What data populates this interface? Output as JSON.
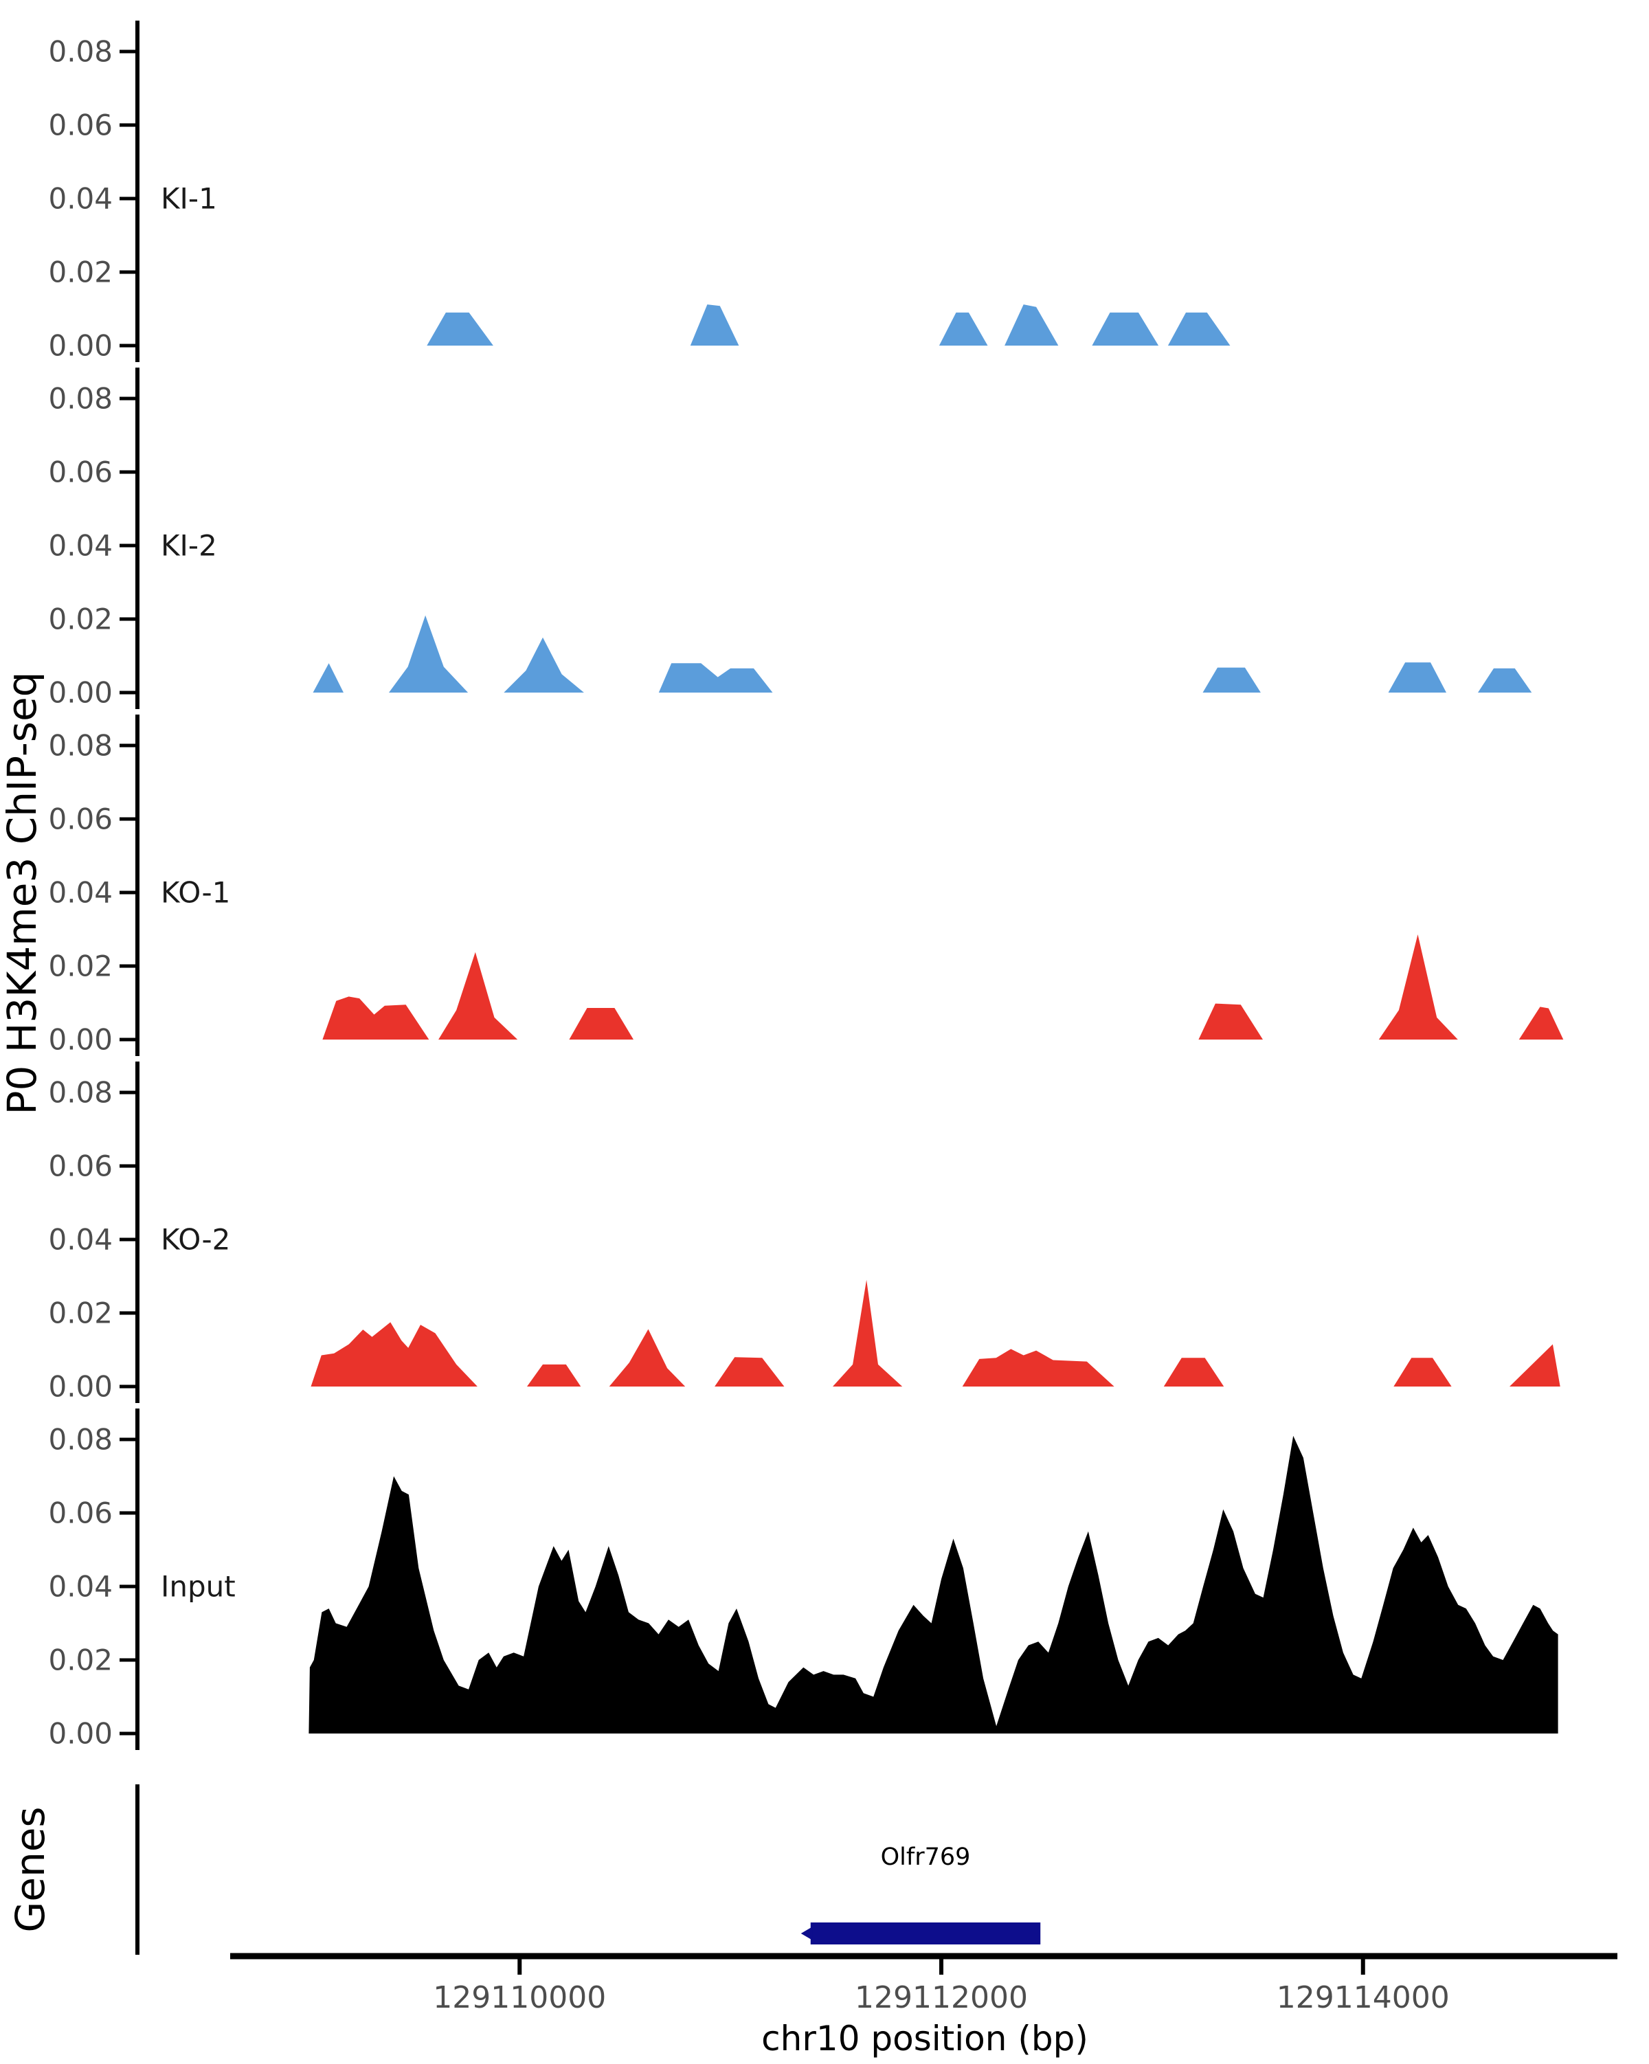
{
  "chart_data": {
    "type": "area",
    "title": "",
    "x_axis": {
      "label": "chr10 position (bp)",
      "ticks": [
        129110000,
        129112000,
        129114000
      ],
      "tick_labels": [
        "129110000",
        "129112000",
        "129114000"
      ],
      "range": [
        129108650,
        129115200
      ],
      "line_color": "#000000",
      "tick_label_color": "#4D4D4D"
    },
    "y_axis": {
      "label": "P0 H3K4me3 ChIP-seq",
      "ticks": [
        0.0,
        0.02,
        0.04,
        0.06,
        0.08
      ],
      "tick_labels": [
        "0.00",
        "0.02",
        "0.04",
        "0.06",
        "0.08"
      ],
      "range": [
        0,
        0.088
      ],
      "line_color": "#000000",
      "tick_label_color": "#4D4D4D"
    },
    "legend_position": "none",
    "grid": false,
    "tracks": [
      {
        "name": "KI-1",
        "color": "#5B9DDB",
        "points": [
          [
            129109560,
            0
          ],
          [
            129109650,
            0.009
          ],
          [
            129109760,
            0.009
          ],
          [
            129109875,
            0
          ],
          [
            129110810,
            0
          ],
          [
            129110890,
            0.0112
          ],
          [
            129110950,
            0.0108
          ],
          [
            129111040,
            0
          ],
          [
            129111990,
            0
          ],
          [
            129112070,
            0.009
          ],
          [
            129112130,
            0.009
          ],
          [
            129112220,
            0
          ],
          [
            129112300,
            0
          ],
          [
            129112390,
            0.0112
          ],
          [
            129112450,
            0.0105
          ],
          [
            129112555,
            0
          ],
          [
            129112715,
            0
          ],
          [
            129112800,
            0.009
          ],
          [
            129112935,
            0.009
          ],
          [
            129113030,
            0
          ],
          [
            129113075,
            0
          ],
          [
            129113160,
            0.009
          ],
          [
            129113260,
            0.009
          ],
          [
            129113370,
            0
          ]
        ]
      },
      {
        "name": "KI-2",
        "color": "#5B9DDB",
        "points": [
          [
            129109020,
            0
          ],
          [
            129109095,
            0.008
          ],
          [
            129109165,
            0
          ],
          [
            129109380,
            0
          ],
          [
            129109470,
            0.007
          ],
          [
            129109553,
            0.021
          ],
          [
            129109640,
            0.007
          ],
          [
            129109755,
            0
          ],
          [
            129109925,
            0
          ],
          [
            129110030,
            0.006
          ],
          [
            129110110,
            0.015
          ],
          [
            129110200,
            0.005
          ],
          [
            129110305,
            0
          ],
          [
            129110660,
            0
          ],
          [
            129110720,
            0.008
          ],
          [
            129110860,
            0.008
          ],
          [
            129110940,
            0.0042
          ],
          [
            129111000,
            0.0066
          ],
          [
            129111110,
            0.0066
          ],
          [
            129111200,
            0
          ],
          [
            129113240,
            0
          ],
          [
            129113310,
            0.0068
          ],
          [
            129113440,
            0.0068
          ],
          [
            129113515,
            0
          ],
          [
            129114120,
            0
          ],
          [
            129114200,
            0.0082
          ],
          [
            129114320,
            0.0082
          ],
          [
            129114395,
            0
          ],
          [
            129114545,
            0
          ],
          [
            129114620,
            0.0066
          ],
          [
            129114720,
            0.0066
          ],
          [
            129114800,
            0
          ]
        ]
      },
      {
        "name": "KO-1",
        "color": "#E9332B",
        "points": [
          [
            129109065,
            0
          ],
          [
            129109130,
            0.0105
          ],
          [
            129109190,
            0.0117
          ],
          [
            129109240,
            0.0112
          ],
          [
            129109310,
            0.0068
          ],
          [
            129109360,
            0.0092
          ],
          [
            129109460,
            0.0095
          ],
          [
            129109570,
            0
          ],
          [
            129109615,
            0
          ],
          [
            129109700,
            0.008
          ],
          [
            129109790,
            0.0238
          ],
          [
            129109880,
            0.006
          ],
          [
            129109990,
            0
          ],
          [
            129110235,
            0
          ],
          [
            129110320,
            0.0086
          ],
          [
            129110450,
            0.0086
          ],
          [
            129110540,
            0
          ],
          [
            129113220,
            0
          ],
          [
            129113300,
            0.0098
          ],
          [
            129113420,
            0.0095
          ],
          [
            129113525,
            0
          ],
          [
            129114075,
            0
          ],
          [
            129114170,
            0.008
          ],
          [
            129114260,
            0.0286
          ],
          [
            129114350,
            0.006
          ],
          [
            129114450,
            0
          ],
          [
            129114740,
            0
          ],
          [
            129114840,
            0.0089
          ],
          [
            129114880,
            0.0085
          ],
          [
            129114950,
            0
          ]
        ]
      },
      {
        "name": "KO-2",
        "color": "#E9332B",
        "points": [
          [
            129109010,
            0
          ],
          [
            129109060,
            0.0085
          ],
          [
            129109120,
            0.009
          ],
          [
            129109190,
            0.0115
          ],
          [
            129109257,
            0.0155
          ],
          [
            129109300,
            0.0135
          ],
          [
            129109387,
            0.0175
          ],
          [
            129109440,
            0.0125
          ],
          [
            129109472,
            0.0105
          ],
          [
            129109530,
            0.0168
          ],
          [
            129109600,
            0.0145
          ],
          [
            129109700,
            0.006
          ],
          [
            129109800,
            0
          ],
          [
            129110035,
            0
          ],
          [
            129110110,
            0.006
          ],
          [
            129110220,
            0.006
          ],
          [
            129110290,
            0
          ],
          [
            129110425,
            0
          ],
          [
            129110520,
            0.0065
          ],
          [
            129110610,
            0.0156
          ],
          [
            129110700,
            0.005
          ],
          [
            129110785,
            0
          ],
          [
            129110925,
            0
          ],
          [
            129111020,
            0.008
          ],
          [
            129111150,
            0.0078
          ],
          [
            129111255,
            0
          ],
          [
            129111485,
            0
          ],
          [
            129111580,
            0.006
          ],
          [
            129111645,
            0.029
          ],
          [
            129111700,
            0.006
          ],
          [
            129111815,
            0
          ],
          [
            129112100,
            0
          ],
          [
            129112180,
            0.0075
          ],
          [
            129112260,
            0.0078
          ],
          [
            129112330,
            0.0102
          ],
          [
            129112390,
            0.0085
          ],
          [
            129112450,
            0.0098
          ],
          [
            129112530,
            0.0072
          ],
          [
            129112690,
            0.0068
          ],
          [
            129112820,
            0
          ],
          [
            129113055,
            0
          ],
          [
            129113140,
            0.0078
          ],
          [
            129113250,
            0.0078
          ],
          [
            129113340,
            0
          ],
          [
            129114145,
            0
          ],
          [
            129114230,
            0.0078
          ],
          [
            129114330,
            0.0078
          ],
          [
            129114420,
            0
          ],
          [
            129114695,
            0
          ],
          [
            129114900,
            0.0115
          ],
          [
            129114935,
            0
          ]
        ]
      },
      {
        "name": "Input",
        "color": "#000000",
        "points": [
          [
            129109000,
            0
          ],
          [
            129109005,
            0.018
          ],
          [
            129109024,
            0.02
          ],
          [
            129109062,
            0.033
          ],
          [
            129109095,
            0.034
          ],
          [
            129109128,
            0.03
          ],
          [
            129109180,
            0.029
          ],
          [
            129109237,
            0.035
          ],
          [
            129109284,
            0.04
          ],
          [
            129109346,
            0.055
          ],
          [
            129109403,
            0.07
          ],
          [
            129109441,
            0.066
          ],
          [
            129109474,
            0.065
          ],
          [
            129109521,
            0.045
          ],
          [
            129109593,
            0.028
          ],
          [
            129109640,
            0.02
          ],
          [
            129109711,
            0.013
          ],
          [
            129109758,
            0.012
          ],
          [
            129109806,
            0.02
          ],
          [
            129109853,
            0.022
          ],
          [
            129109891,
            0.018
          ],
          [
            129109924,
            0.021
          ],
          [
            129109972,
            0.022
          ],
          [
            129110019,
            0.021
          ],
          [
            129110090,
            0.04
          ],
          [
            129110161,
            0.051
          ],
          [
            129110199,
            0.047
          ],
          [
            129110232,
            0.05
          ],
          [
            129110280,
            0.036
          ],
          [
            129110313,
            0.033
          ],
          [
            129110360,
            0.04
          ],
          [
            129110422,
            0.051
          ],
          [
            129110469,
            0.043
          ],
          [
            129110517,
            0.033
          ],
          [
            129110564,
            0.031
          ],
          [
            129110612,
            0.03
          ],
          [
            129110659,
            0.027
          ],
          [
            129110706,
            0.031
          ],
          [
            129110754,
            0.029
          ],
          [
            129110801,
            0.031
          ],
          [
            129110849,
            0.024
          ],
          [
            129110896,
            0.019
          ],
          [
            129110943,
            0.017
          ],
          [
            129110991,
            0.03
          ],
          [
            129111029,
            0.034
          ],
          [
            129111086,
            0.025
          ],
          [
            129111133,
            0.015
          ],
          [
            129111180,
            0.008
          ],
          [
            129111214,
            0.007
          ],
          [
            129111275,
            0.014
          ],
          [
            129111346,
            0.018
          ],
          [
            129111394,
            0.016
          ],
          [
            129111441,
            0.017
          ],
          [
            129111489,
            0.016
          ],
          [
            129111536,
            0.016
          ],
          [
            129111593,
            0.015
          ],
          [
            129111631,
            0.011
          ],
          [
            129111678,
            0.01
          ],
          [
            129111726,
            0.018
          ],
          [
            129111797,
            0.028
          ],
          [
            129111868,
            0.035
          ],
          [
            129111915,
            0.032
          ],
          [
            129111953,
            0.03
          ],
          [
            129112000,
            0.042
          ],
          [
            129112057,
            0.053
          ],
          [
            129112104,
            0.045
          ],
          [
            129112152,
            0.03
          ],
          [
            129112199,
            0.015
          ],
          [
            129112261,
            0.002
          ],
          [
            129112318,
            0.012
          ],
          [
            129112365,
            0.02
          ],
          [
            129112413,
            0.024
          ],
          [
            129112460,
            0.025
          ],
          [
            129112508,
            0.022
          ],
          [
            129112555,
            0.03
          ],
          [
            129112602,
            0.04
          ],
          [
            129112650,
            0.048
          ],
          [
            129112697,
            0.055
          ],
          [
            129112745,
            0.043
          ],
          [
            129112792,
            0.03
          ],
          [
            129112839,
            0.02
          ],
          [
            129112887,
            0.013
          ],
          [
            129112934,
            0.02
          ],
          [
            129112982,
            0.025
          ],
          [
            129113029,
            0.026
          ],
          [
            129113076,
            0.024
          ],
          [
            129113124,
            0.027
          ],
          [
            129113157,
            0.028
          ],
          [
            129113195,
            0.03
          ],
          [
            129113242,
            0.04
          ],
          [
            129113290,
            0.05
          ],
          [
            129113337,
            0.061
          ],
          [
            129113385,
            0.055
          ],
          [
            129113432,
            0.045
          ],
          [
            129113489,
            0.038
          ],
          [
            129113527,
            0.037
          ],
          [
            129113574,
            0.05
          ],
          [
            129113622,
            0.065
          ],
          [
            129113669,
            0.081
          ],
          [
            129113717,
            0.075
          ],
          [
            129113764,
            0.06
          ],
          [
            129113811,
            0.045
          ],
          [
            129113859,
            0.032
          ],
          [
            129113906,
            0.022
          ],
          [
            129113954,
            0.016
          ],
          [
            129113992,
            0.015
          ],
          [
            129114048,
            0.025
          ],
          [
            129114096,
            0.035
          ],
          [
            129114143,
            0.045
          ],
          [
            129114191,
            0.05
          ],
          [
            129114238,
            0.056
          ],
          [
            129114276,
            0.052
          ],
          [
            129114309,
            0.054
          ],
          [
            129114356,
            0.048
          ],
          [
            129114404,
            0.04
          ],
          [
            129114451,
            0.035
          ],
          [
            129114489,
            0.034
          ],
          [
            129114532,
            0.03
          ],
          [
            129114579,
            0.024
          ],
          [
            129114617,
            0.021
          ],
          [
            129114664,
            0.02
          ],
          [
            129114712,
            0.025
          ],
          [
            129114759,
            0.03
          ],
          [
            129114807,
            0.035
          ],
          [
            129114840,
            0.034
          ],
          [
            129114878,
            0.03
          ],
          [
            129114901,
            0.028
          ],
          [
            129114925,
            0.027
          ],
          [
            129114925,
            0
          ]
        ]
      }
    ],
    "genes_track": {
      "label": "Genes",
      "genes": [
        {
          "name": "Olfr769",
          "start": 129111380,
          "end": 129112470,
          "strand": "-",
          "color": "#0D0D8C"
        }
      ]
    }
  }
}
